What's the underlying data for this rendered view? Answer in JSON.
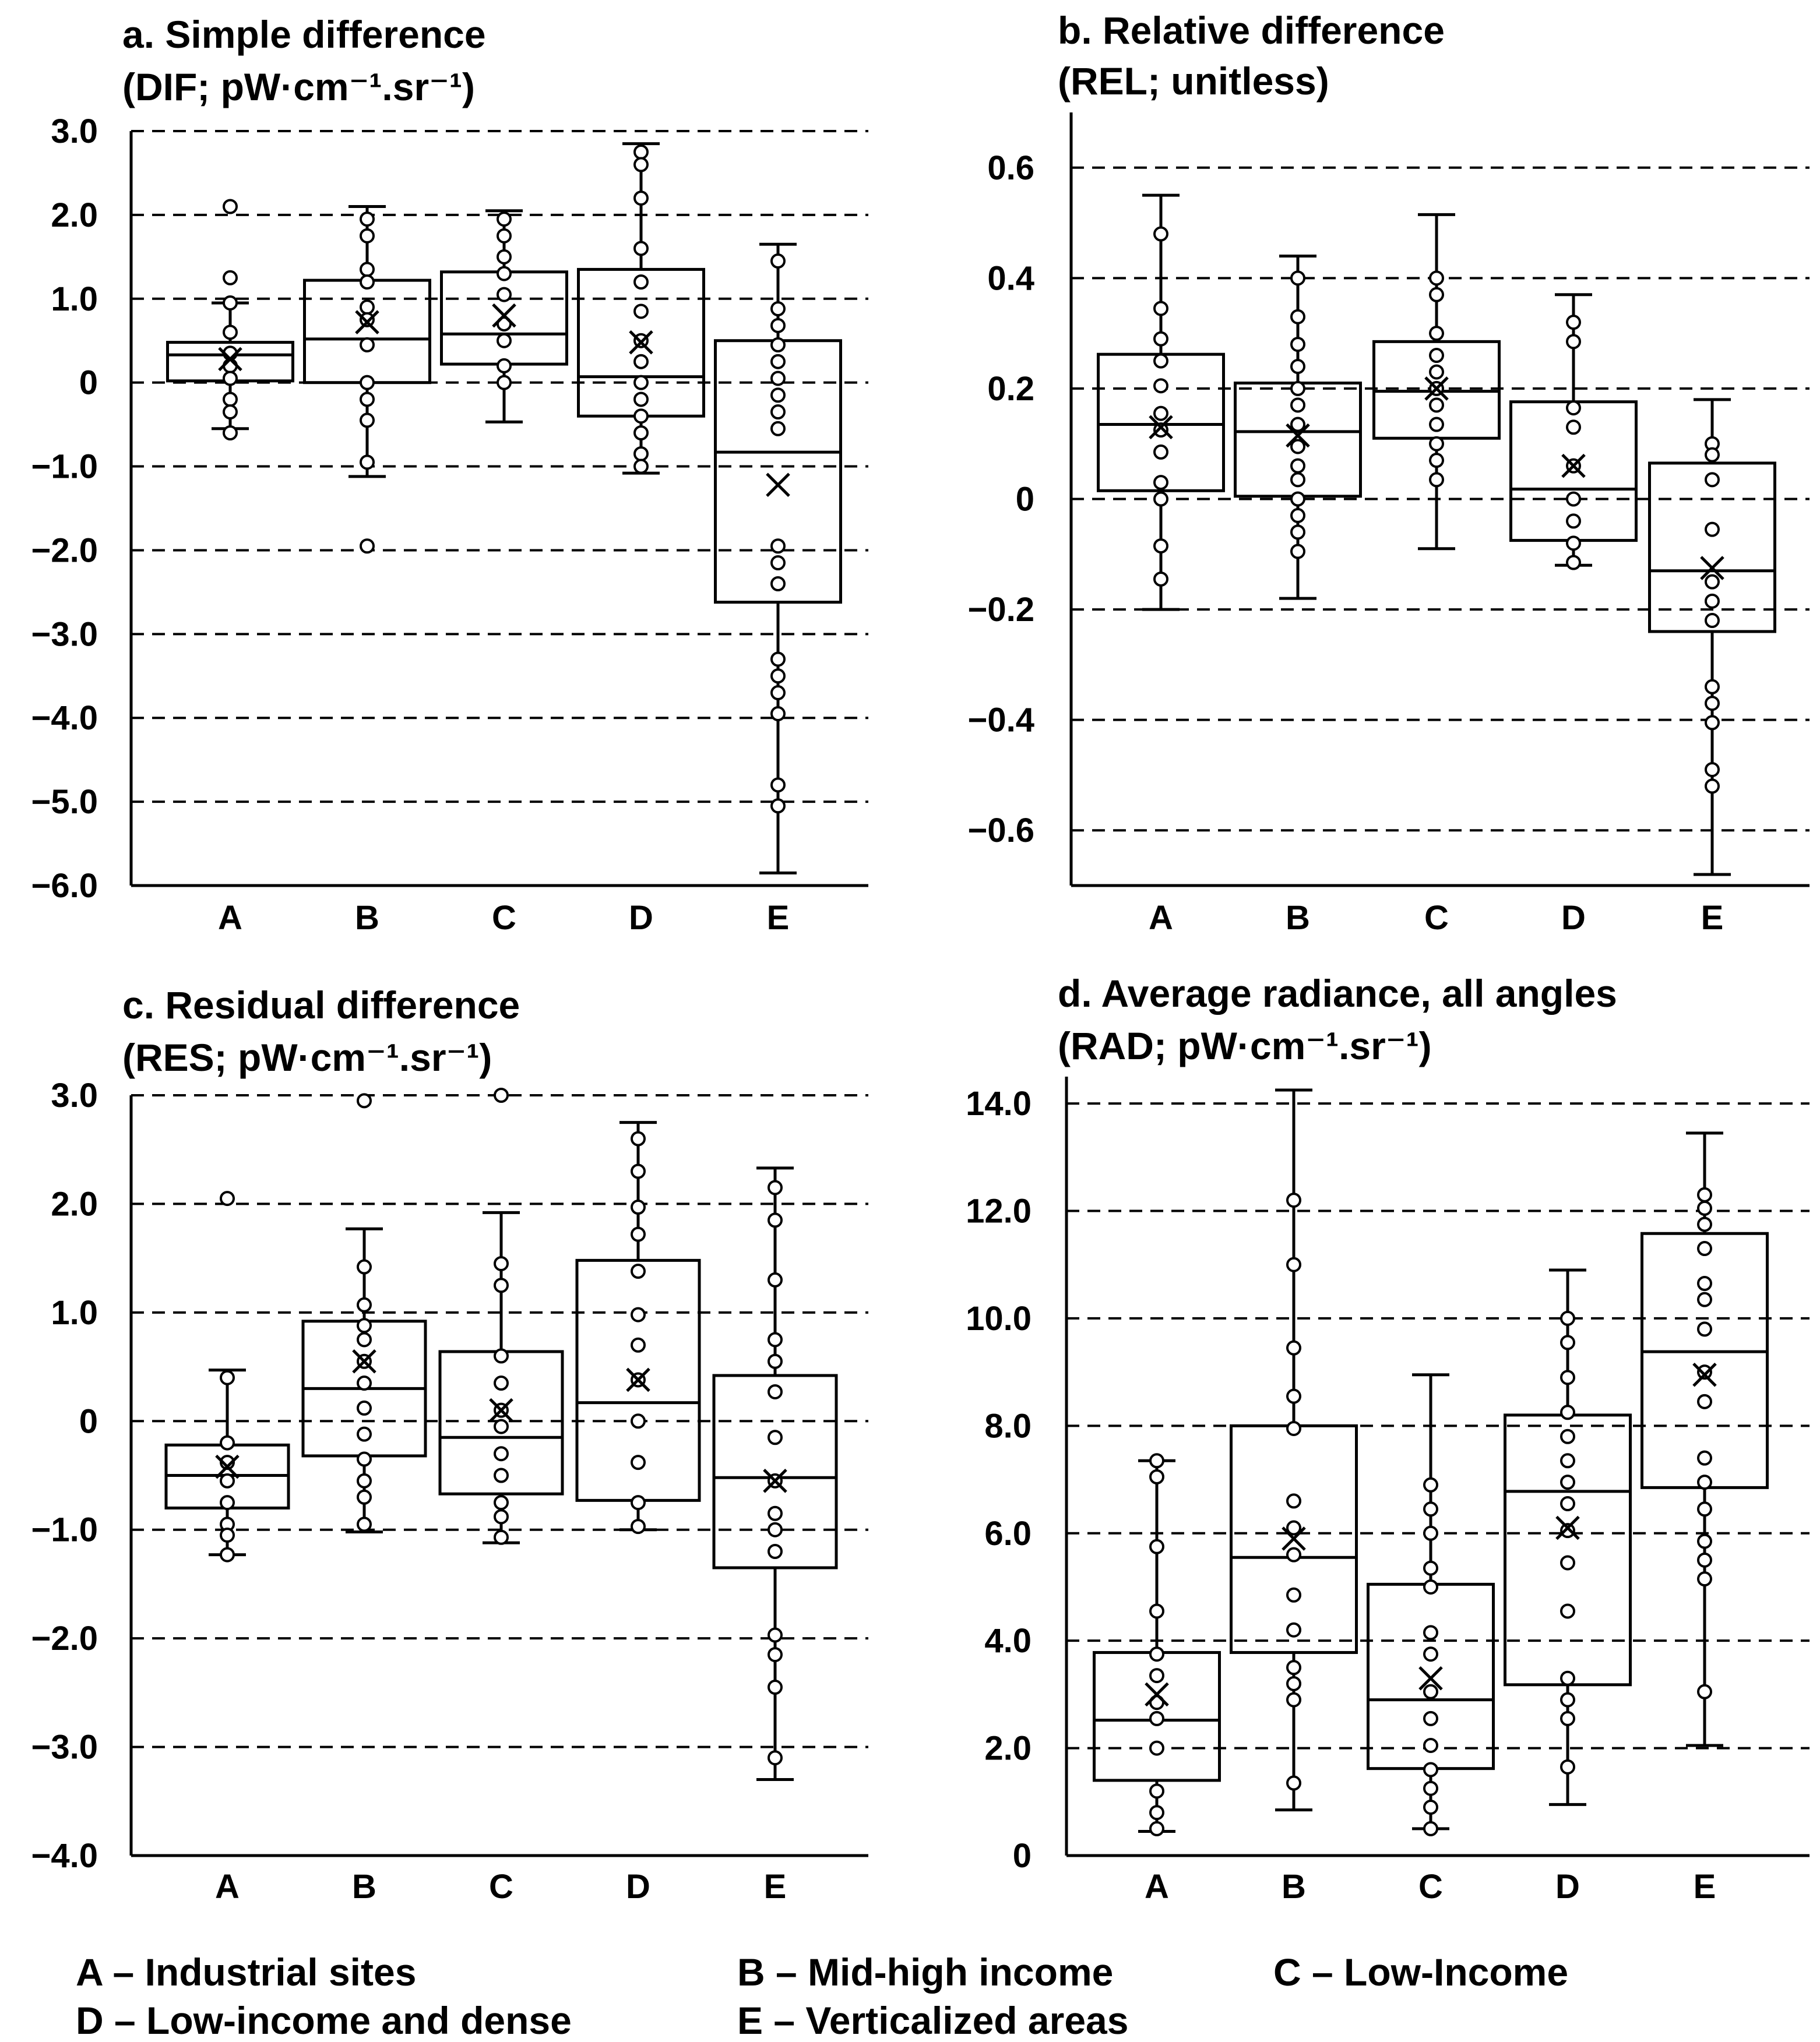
{
  "legend": [
    {
      "key": "A",
      "text": "A – Industrial sites"
    },
    {
      "key": "B",
      "text": "B – Mid-high income"
    },
    {
      "key": "C",
      "text": "C – Low-Income"
    },
    {
      "key": "D",
      "text": "D – Low-income and dense"
    },
    {
      "key": "E",
      "text": "E – Verticalized areas"
    }
  ],
  "chart_data": [
    {
      "type": "box",
      "title": "a.    Simple difference",
      "subtitle": "(DIF; pW·cm⁻¹.sr⁻¹)",
      "categories": [
        "A",
        "B",
        "C",
        "D",
        "E"
      ],
      "ylim": [
        -6,
        3
      ],
      "yticks": [
        3,
        2,
        1,
        0,
        -1,
        -2,
        -3,
        -4,
        -5,
        -6
      ],
      "ytick_labels": [
        "3.0",
        "2.0",
        "1.0",
        "0",
        "−1.0",
        "−2.0",
        "−3.0",
        "−4.0",
        "−5.0",
        "−6.0"
      ],
      "grid": true,
      "boxes": [
        {
          "cat": "A",
          "wlo": -0.55,
          "q1": 0.02,
          "med": 0.33,
          "q3": 0.48,
          "whi": 0.95,
          "mean": 0.28,
          "points": [
            2.1,
            1.25,
            0.95,
            0.6,
            0.35,
            0.2,
            0.05,
            -0.2,
            -0.35,
            -0.6
          ]
        },
        {
          "cat": "B",
          "wlo": -1.12,
          "q1": 0.0,
          "med": 0.52,
          "q3": 1.22,
          "whi": 2.1,
          "mean": 0.72,
          "points": [
            1.95,
            1.75,
            1.35,
            1.2,
            0.9,
            0.75,
            0.45,
            0.0,
            -0.2,
            -0.45,
            -0.95,
            -1.95
          ]
        },
        {
          "cat": "C",
          "wlo": -0.47,
          "q1": 0.22,
          "med": 0.58,
          "q3": 1.32,
          "whi": 2.05,
          "mean": 0.8,
          "points": [
            1.95,
            1.75,
            1.5,
            1.3,
            1.05,
            0.7,
            0.5,
            0.2,
            0.0
          ]
        },
        {
          "cat": "D",
          "wlo": -1.08,
          "q1": -0.4,
          "med": 0.07,
          "q3": 1.35,
          "whi": 2.85,
          "mean": 0.48,
          "points": [
            2.75,
            2.6,
            2.2,
            1.6,
            1.2,
            0.85,
            0.5,
            0.25,
            0.0,
            -0.2,
            -0.4,
            -0.6,
            -0.85,
            -1.0
          ]
        },
        {
          "cat": "E",
          "wlo": -5.85,
          "q1": -2.62,
          "med": -0.83,
          "q3": 0.5,
          "whi": 1.65,
          "mean": -1.22,
          "points": [
            1.45,
            0.88,
            0.68,
            0.45,
            0.25,
            0.05,
            -0.15,
            -0.35,
            -0.55,
            -1.95,
            -2.15,
            -2.4,
            -3.3,
            -3.5,
            -3.7,
            -3.95,
            -4.8,
            -5.05
          ]
        }
      ]
    },
    {
      "type": "box",
      "title": "b. Relative difference",
      "subtitle": "(REL; unitless)",
      "categories": [
        "A",
        "B",
        "C",
        "D",
        "E"
      ],
      "ylim": [
        -0.7,
        0.7
      ],
      "yticks": [
        0.6,
        0.4,
        0.2,
        0,
        -0.2,
        -0.4,
        -0.6
      ],
      "ytick_labels": [
        "0.6",
        "0.4",
        "0.2",
        "0",
        "−0.2",
        "−0.4",
        "−0.6"
      ],
      "grid": true,
      "boxes": [
        {
          "cat": "A",
          "wlo": -0.2,
          "q1": 0.015,
          "med": 0.135,
          "q3": 0.262,
          "whi": 0.55,
          "mean": 0.13,
          "points": [
            0.48,
            0.345,
            0.29,
            0.25,
            0.205,
            0.155,
            0.125,
            0.085,
            0.03,
            0.0,
            -0.085,
            -0.145
          ]
        },
        {
          "cat": "B",
          "wlo": -0.18,
          "q1": 0.005,
          "med": 0.122,
          "q3": 0.21,
          "whi": 0.44,
          "mean": 0.115,
          "points": [
            0.4,
            0.33,
            0.28,
            0.24,
            0.2,
            0.17,
            0.135,
            0.095,
            0.06,
            0.035,
            0.0,
            -0.03,
            -0.06,
            -0.095
          ]
        },
        {
          "cat": "C",
          "wlo": -0.09,
          "q1": 0.11,
          "med": 0.195,
          "q3": 0.285,
          "whi": 0.515,
          "mean": 0.2,
          "points": [
            0.4,
            0.37,
            0.3,
            0.26,
            0.23,
            0.2,
            0.17,
            0.135,
            0.1,
            0.07,
            0.035
          ]
        },
        {
          "cat": "D",
          "wlo": -0.12,
          "q1": -0.075,
          "med": 0.018,
          "q3": 0.176,
          "whi": 0.37,
          "mean": 0.06,
          "points": [
            0.32,
            0.285,
            0.165,
            0.13,
            0.06,
            0.0,
            -0.04,
            -0.08,
            -0.115
          ]
        },
        {
          "cat": "E",
          "wlo": -0.68,
          "q1": -0.24,
          "med": -0.13,
          "q3": 0.065,
          "whi": 0.18,
          "mean": -0.125,
          "points": [
            0.1,
            0.08,
            0.035,
            -0.055,
            -0.15,
            -0.185,
            -0.22,
            -0.34,
            -0.37,
            -0.405,
            -0.49,
            -0.52
          ]
        }
      ]
    },
    {
      "type": "box",
      "title": "c. Residual difference",
      "subtitle": "(RES; pW·cm⁻¹.sr⁻¹)",
      "categories": [
        "A",
        "B",
        "C",
        "D",
        "E"
      ],
      "ylim": [
        -4,
        3
      ],
      "yticks": [
        3,
        2,
        1,
        0,
        -1,
        -2,
        -3,
        -4
      ],
      "ytick_labels": [
        "3.0",
        "2.0",
        "1.0",
        "0",
        "−1.0",
        "−2.0",
        "−3.0",
        "−4.0"
      ],
      "grid": true,
      "boxes": [
        {
          "cat": "A",
          "wlo": -1.23,
          "q1": -0.8,
          "med": -0.5,
          "q3": -0.22,
          "whi": 0.47,
          "mean": -0.42,
          "points": [
            2.05,
            0.4,
            -0.2,
            -0.38,
            -0.55,
            -0.75,
            -0.95,
            -1.05,
            -1.23
          ]
        },
        {
          "cat": "B",
          "wlo": -1.02,
          "q1": -0.32,
          "med": 0.3,
          "q3": 0.92,
          "whi": 1.77,
          "mean": 0.55,
          "points": [
            2.95,
            1.42,
            1.07,
            0.88,
            0.75,
            0.55,
            0.35,
            0.12,
            -0.12,
            -0.35,
            -0.55,
            -0.7,
            -0.95
          ]
        },
        {
          "cat": "C",
          "wlo": -1.12,
          "q1": -0.67,
          "med": -0.15,
          "q3": 0.64,
          "whi": 1.92,
          "mean": 0.1,
          "points": [
            3.0,
            1.45,
            1.25,
            0.6,
            0.35,
            0.1,
            -0.05,
            -0.3,
            -0.5,
            -0.75,
            -0.88,
            -1.07
          ]
        },
        {
          "cat": "D",
          "wlo": -1.0,
          "q1": -0.73,
          "med": 0.17,
          "q3": 1.48,
          "whi": 2.75,
          "mean": 0.38,
          "points": [
            2.6,
            2.3,
            1.97,
            1.72,
            1.38,
            0.98,
            0.7,
            0.38,
            0.0,
            -0.38,
            -0.75,
            -0.97
          ]
        },
        {
          "cat": "E",
          "wlo": -3.3,
          "q1": -1.35,
          "med": -0.52,
          "q3": 0.42,
          "whi": 2.33,
          "mean": -0.55,
          "points": [
            2.15,
            1.85,
            1.3,
            0.75,
            0.55,
            0.27,
            -0.15,
            -0.55,
            -0.85,
            -1.0,
            -1.2,
            -1.97,
            -2.15,
            -2.45,
            -3.1
          ]
        }
      ]
    },
    {
      "type": "box",
      "title": "d. Average radiance, all angles",
      "subtitle": "(RAD; pW·cm⁻¹.sr⁻¹)",
      "categories": [
        "A",
        "B",
        "C",
        "D",
        "E"
      ],
      "ylim": [
        0,
        14.5
      ],
      "yticks": [
        14,
        12,
        10,
        8,
        6,
        4,
        2,
        0
      ],
      "ytick_labels": [
        "14.0",
        "12.0",
        "10.0",
        "8.0",
        "6.0",
        "4.0",
        "2.0",
        "0"
      ],
      "grid": true,
      "boxes": [
        {
          "cat": "A",
          "wlo": 0.45,
          "q1": 1.4,
          "med": 2.52,
          "q3": 3.78,
          "whi": 7.35,
          "mean": 3.0,
          "points": [
            7.35,
            7.05,
            5.75,
            4.55,
            3.75,
            3.35,
            2.85,
            2.55,
            2.0,
            1.2,
            0.8,
            0.5
          ]
        },
        {
          "cat": "B",
          "wlo": 0.85,
          "q1": 3.78,
          "med": 5.55,
          "q3": 8.0,
          "whi": 14.25,
          "mean": 5.9,
          "points": [
            12.2,
            11.0,
            9.45,
            8.55,
            7.95,
            6.6,
            6.1,
            5.6,
            4.85,
            4.2,
            3.5,
            3.2,
            2.9,
            1.35
          ]
        },
        {
          "cat": "C",
          "wlo": 0.5,
          "q1": 1.62,
          "med": 2.9,
          "q3": 5.05,
          "whi": 8.95,
          "mean": 3.3,
          "points": [
            6.9,
            6.45,
            6.0,
            5.35,
            5.0,
            4.15,
            3.75,
            3.05,
            2.55,
            2.05,
            1.6,
            1.25,
            0.9,
            0.5
          ]
        },
        {
          "cat": "D",
          "wlo": 0.95,
          "q1": 3.18,
          "med": 6.78,
          "q3": 8.2,
          "whi": 10.9,
          "mean": 6.1,
          "points": [
            10.0,
            9.55,
            8.9,
            8.25,
            7.8,
            7.35,
            6.95,
            6.55,
            6.05,
            5.45,
            4.55,
            3.3,
            2.9,
            2.55,
            1.65
          ]
        },
        {
          "cat": "E",
          "wlo": 2.05,
          "q1": 6.85,
          "med": 9.38,
          "q3": 11.58,
          "whi": 13.45,
          "mean": 8.95,
          "points": [
            12.3,
            12.05,
            11.75,
            11.3,
            10.65,
            10.35,
            9.8,
            9.0,
            8.45,
            7.4,
            6.95,
            6.45,
            5.85,
            5.5,
            5.15,
            3.05
          ]
        }
      ]
    }
  ]
}
